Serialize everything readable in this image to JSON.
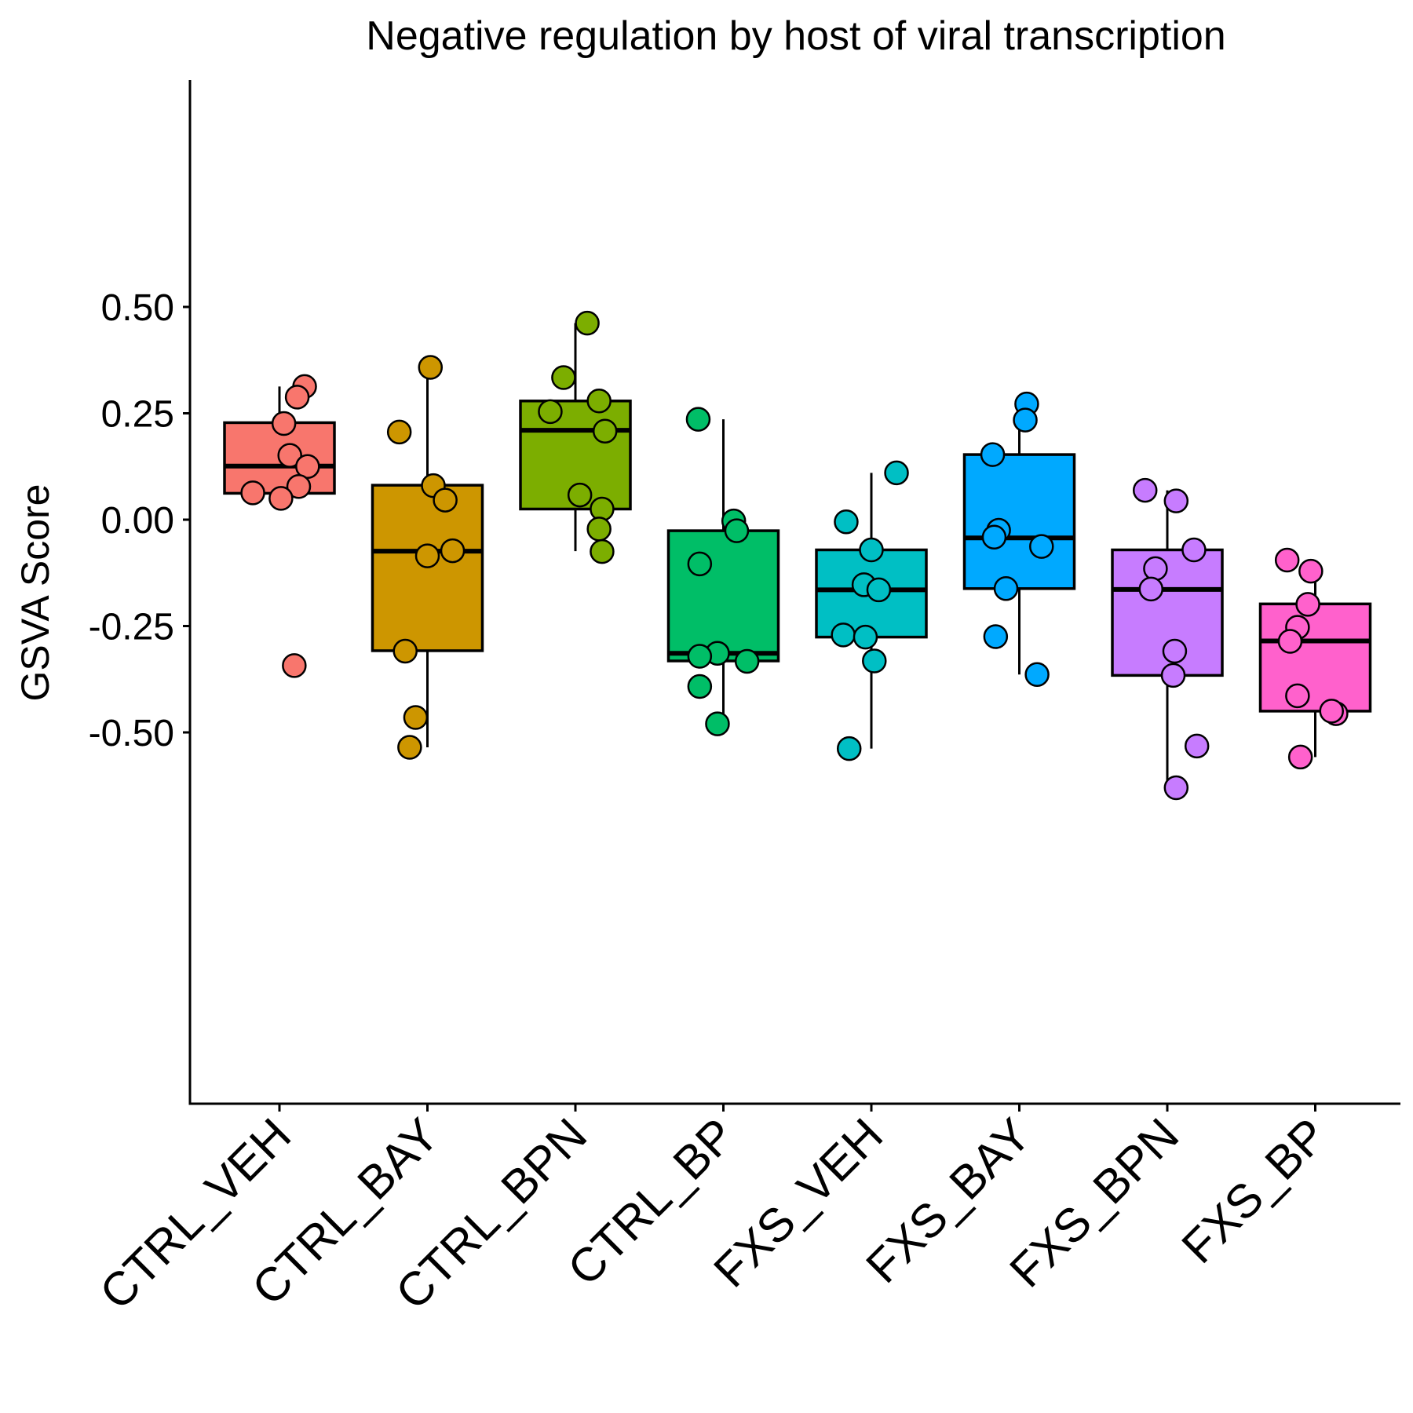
{
  "chart_data": {
    "type": "box",
    "title": "Negative regulation by host of viral transcription",
    "xlabel": "",
    "ylabel": "GSVA Score",
    "ylim": [
      -0.67,
      0.52
    ],
    "y_ticks": [
      "0.50",
      "0.25",
      "0.00",
      "-0.25",
      "-0.50"
    ],
    "y_tick_values": [
      0.5,
      0.25,
      0.0,
      -0.25,
      -0.5
    ],
    "grid": false,
    "legend": "none",
    "categories": [
      "CTRL_VEH",
      "CTRL_BAY",
      "CTRL_BPN",
      "CTRL_BP",
      "FXS_VEH",
      "FXS_BAY",
      "FXS_BPN",
      "FXS_BP"
    ],
    "colors": [
      "#F8766D",
      "#CD9600",
      "#7CAE00",
      "#00BE67",
      "#00BFC4",
      "#00A9FF",
      "#C77CFF",
      "#FF61CC"
    ],
    "boxes": [
      {
        "whisker_low": 0.05,
        "q1": 0.062,
        "median": 0.126,
        "q3": 0.228,
        "whisker_high": 0.313
      },
      {
        "whisker_low": -0.535,
        "q1": -0.308,
        "median": -0.074,
        "q3": 0.081,
        "whisker_high": 0.358
      },
      {
        "whisker_low": -0.074,
        "q1": 0.025,
        "median": 0.21,
        "q3": 0.279,
        "whisker_high": 0.462
      },
      {
        "whisker_low": -0.48,
        "q1": -0.332,
        "median": -0.314,
        "q3": -0.026,
        "whisker_high": 0.236
      },
      {
        "whisker_low": -0.538,
        "q1": -0.276,
        "median": -0.165,
        "q3": -0.071,
        "whisker_high": 0.11
      },
      {
        "whisker_low": -0.364,
        "q1": -0.162,
        "median": -0.043,
        "q3": 0.153,
        "whisker_high": 0.272
      },
      {
        "whisker_low": -0.63,
        "q1": -0.366,
        "median": -0.164,
        "q3": -0.071,
        "whisker_high": 0.069
      },
      {
        "whisker_low": -0.558,
        "q1": -0.45,
        "median": -0.285,
        "q3": -0.198,
        "whisker_high": -0.095
      }
    ],
    "points": [
      {
        "jitter": [
          0.17,
          0.12,
          0.03,
          0.07,
          0.19,
          0.13,
          -0.18,
          0.01,
          0.1
        ],
        "values": [
          0.313,
          0.288,
          0.226,
          0.151,
          0.125,
          0.078,
          0.063,
          0.05,
          -0.343
        ]
      },
      {
        "jitter": [
          0.02,
          -0.19,
          0.04,
          0.12,
          0.17,
          0.0,
          -0.15,
          -0.08,
          -0.12
        ],
        "values": [
          0.358,
          0.206,
          0.08,
          0.046,
          -0.073,
          -0.085,
          -0.309,
          -0.465,
          -0.535
        ]
      },
      {
        "jitter": [
          0.08,
          -0.08,
          -0.17,
          0.16,
          0.2,
          0.03,
          0.18,
          0.16,
          0.18
        ],
        "values": [
          0.462,
          0.334,
          0.254,
          0.279,
          0.208,
          0.058,
          0.025,
          -0.022,
          -0.075
        ]
      },
      {
        "jitter": [
          -0.17,
          0.07,
          0.09,
          -0.16,
          -0.04,
          -0.16,
          0.16,
          -0.16,
          -0.04
        ],
        "values": [
          0.236,
          -0.003,
          -0.026,
          -0.104,
          -0.314,
          -0.321,
          -0.333,
          -0.392,
          -0.48
        ]
      },
      {
        "jitter": [
          0.17,
          -0.17,
          0.0,
          -0.05,
          0.05,
          -0.19,
          -0.04,
          0.02,
          -0.15
        ],
        "values": [
          0.11,
          -0.005,
          -0.071,
          -0.153,
          -0.165,
          -0.271,
          -0.276,
          -0.332,
          -0.538
        ]
      },
      {
        "jitter": [
          0.05,
          0.04,
          -0.18,
          -0.14,
          -0.17,
          0.15,
          -0.09,
          -0.16,
          0.12
        ],
        "values": [
          0.272,
          0.234,
          0.153,
          -0.025,
          -0.041,
          -0.063,
          -0.162,
          -0.275,
          -0.364
        ]
      },
      {
        "jitter": [
          -0.15,
          0.06,
          0.18,
          -0.08,
          -0.11,
          0.05,
          0.04,
          0.2,
          0.06
        ],
        "values": [
          0.069,
          0.044,
          -0.071,
          -0.115,
          -0.163,
          -0.309,
          -0.366,
          -0.532,
          -0.63
        ]
      },
      {
        "jitter": [
          -0.19,
          -0.03,
          -0.05,
          -0.12,
          -0.17,
          -0.12,
          0.14,
          0.11,
          -0.1
        ],
        "values": [
          -0.095,
          -0.121,
          -0.199,
          -0.253,
          -0.286,
          -0.414,
          -0.456,
          -0.45,
          -0.558
        ]
      }
    ]
  }
}
